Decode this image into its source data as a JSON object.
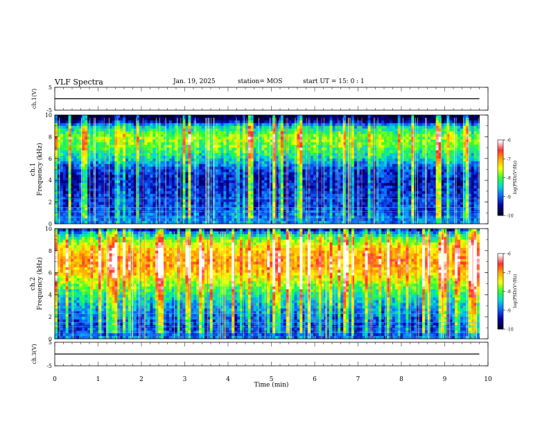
{
  "header": {
    "title": "VLF Spectra",
    "date": "Jan. 19, 2025",
    "station": "station= MOS",
    "start": "start  UT  =   15: 0   : 1"
  },
  "colorbar": {
    "label": "log(PSD)(V²/Hz)",
    "ticks": [
      "-6",
      "-7",
      "-8",
      "-9",
      "-10"
    ],
    "colors": [
      "#ffffff",
      "#ff3030",
      "#ffaa00",
      "#ffff00",
      "#30ff30",
      "#00d8d8",
      "#1060ff",
      "#0000a0",
      "#000030"
    ]
  },
  "chart_data": [
    {
      "type": "line",
      "panel": "ch1-waveform",
      "ylabel": "ch.1(V)",
      "ylim": [
        -5,
        5
      ],
      "yticks": [
        "5",
        "-5"
      ],
      "series": [
        {
          "x": [
            0,
            9.8
          ],
          "y": [
            0,
            0
          ]
        }
      ]
    },
    {
      "type": "heatmap",
      "panel": "ch1-spectrogram",
      "ylabel_top": "ch.1",
      "ylabel": "Frequency (kHz)",
      "ylim": [
        0,
        10
      ],
      "yticks": [
        "0",
        "2",
        "4",
        "6",
        "8",
        "10"
      ],
      "xlim": [
        0,
        9.8
      ],
      "zlabel": "log(PSD)(V²/Hz)",
      "zlim": [
        -10,
        -6
      ],
      "frequency_profile_log_psd": {
        "freq_khz": [
          0,
          1,
          2,
          3,
          4,
          5,
          6,
          7,
          8,
          9,
          9.5,
          10
        ],
        "value": [
          -8.8,
          -9.1,
          -9.2,
          -9.3,
          -9.4,
          -9.2,
          -8.5,
          -8.0,
          -7.8,
          -8.6,
          -9.8,
          -10
        ]
      }
    },
    {
      "type": "heatmap",
      "panel": "ch2-spectrogram",
      "ylabel_top": "ch.2",
      "ylabel": "Frequency (kHz)",
      "ylim": [
        0,
        10
      ],
      "yticks": [
        "0",
        "2",
        "4",
        "6",
        "8",
        "10"
      ],
      "xlim": [
        0,
        9.8
      ],
      "zlabel": "log(PSD)(V²/Hz)",
      "zlim": [
        -10,
        -6
      ],
      "frequency_profile_log_psd": {
        "freq_khz": [
          0,
          1,
          2,
          3,
          4,
          5,
          6,
          7,
          8,
          9,
          9.5,
          10
        ],
        "value": [
          -9.0,
          -9.2,
          -9.0,
          -8.7,
          -8.3,
          -7.8,
          -7.2,
          -6.9,
          -7.2,
          -7.9,
          -8.6,
          -9.6
        ]
      }
    },
    {
      "type": "line",
      "panel": "ch3-waveform",
      "ylabel": "ch.3(V)",
      "xlabel": "Time (min)",
      "ylim": [
        -5,
        5
      ],
      "yticks": [
        "5",
        "-5"
      ],
      "xlim": [
        0,
        10
      ],
      "xticks": [
        "0",
        "1",
        "2",
        "3",
        "4",
        "5",
        "6",
        "7",
        "8",
        "9",
        "10"
      ],
      "series": [
        {
          "x": [
            0,
            9.8
          ],
          "y": [
            0,
            0
          ]
        }
      ]
    }
  ]
}
